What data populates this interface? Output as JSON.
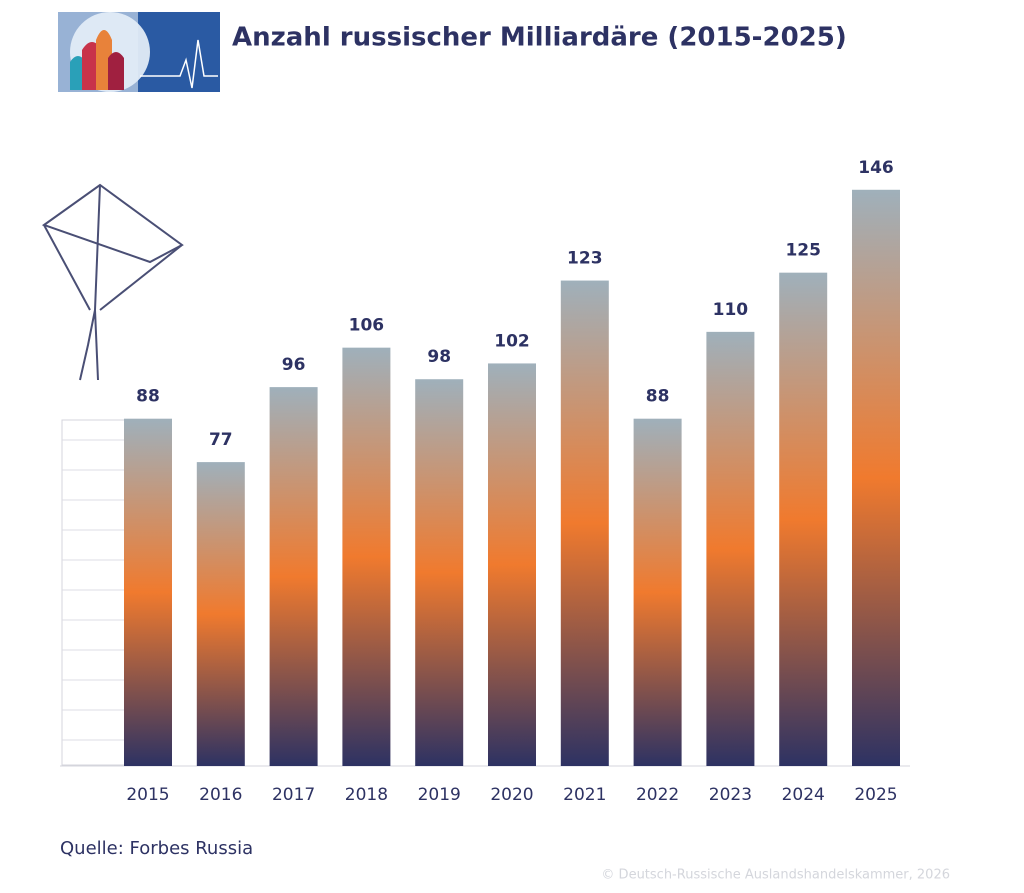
{
  "chart_data": {
    "type": "bar",
    "title": "Anzahl russischer Milliardäre (2015-2025)",
    "categories": [
      "2015",
      "2016",
      "2017",
      "2018",
      "2019",
      "2020",
      "2021",
      "2022",
      "2023",
      "2024",
      "2025"
    ],
    "values": [
      88,
      77,
      96,
      106,
      98,
      102,
      123,
      88,
      110,
      125,
      146
    ],
    "colors": [
      "#9fb0bb",
      "#f07a2e",
      "#2d3263"
    ],
    "ylim": [
      0,
      150
    ],
    "source": "Quelle: Forbes Russia",
    "copyright": "© Deutsch-Russische Auslandshandelskammer, 2026"
  }
}
